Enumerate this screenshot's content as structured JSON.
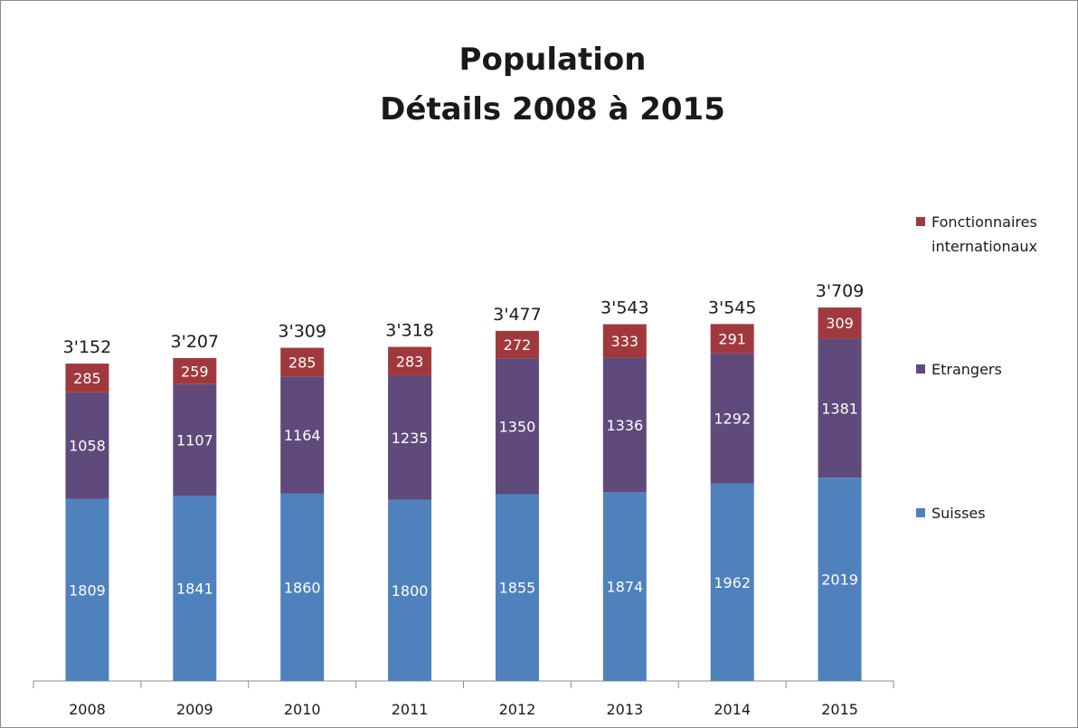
{
  "chart_data": {
    "type": "bar",
    "stacked": true,
    "title": [
      "Population",
      "Détails 2008 à 2015"
    ],
    "categories": [
      "2008",
      "2009",
      "2010",
      "2011",
      "2012",
      "2013",
      "2014",
      "2015"
    ],
    "series": [
      {
        "name": "Suisses",
        "color": "#4f81bd",
        "values": [
          1809,
          1841,
          1860,
          1800,
          1855,
          1874,
          1962,
          2019
        ]
      },
      {
        "name": "Etrangers",
        "color": "#604a7b",
        "values": [
          1058,
          1107,
          1164,
          1235,
          1350,
          1336,
          1292,
          1381
        ]
      },
      {
        "name": "Fonctionnaires internationaux",
        "color": "#a0393d",
        "values": [
          285,
          259,
          285,
          283,
          272,
          333,
          291,
          309
        ]
      }
    ],
    "totals": [
      "3'152",
      "3'207",
      "3'309",
      "3'318",
      "3'477",
      "3'543",
      "3'545",
      "3'709"
    ],
    "legend": {
      "placement": "right",
      "items": [
        {
          "lines": [
            "Fonctionnaires",
            "internationaux"
          ],
          "color": "#a0393d"
        },
        {
          "lines": [
            "Etrangers"
          ],
          "color": "#604a7b"
        },
        {
          "lines": [
            "Suisses"
          ],
          "color": "#4f81bd"
        }
      ]
    },
    "ylim": [
      0,
      4850
    ],
    "grid": false
  }
}
